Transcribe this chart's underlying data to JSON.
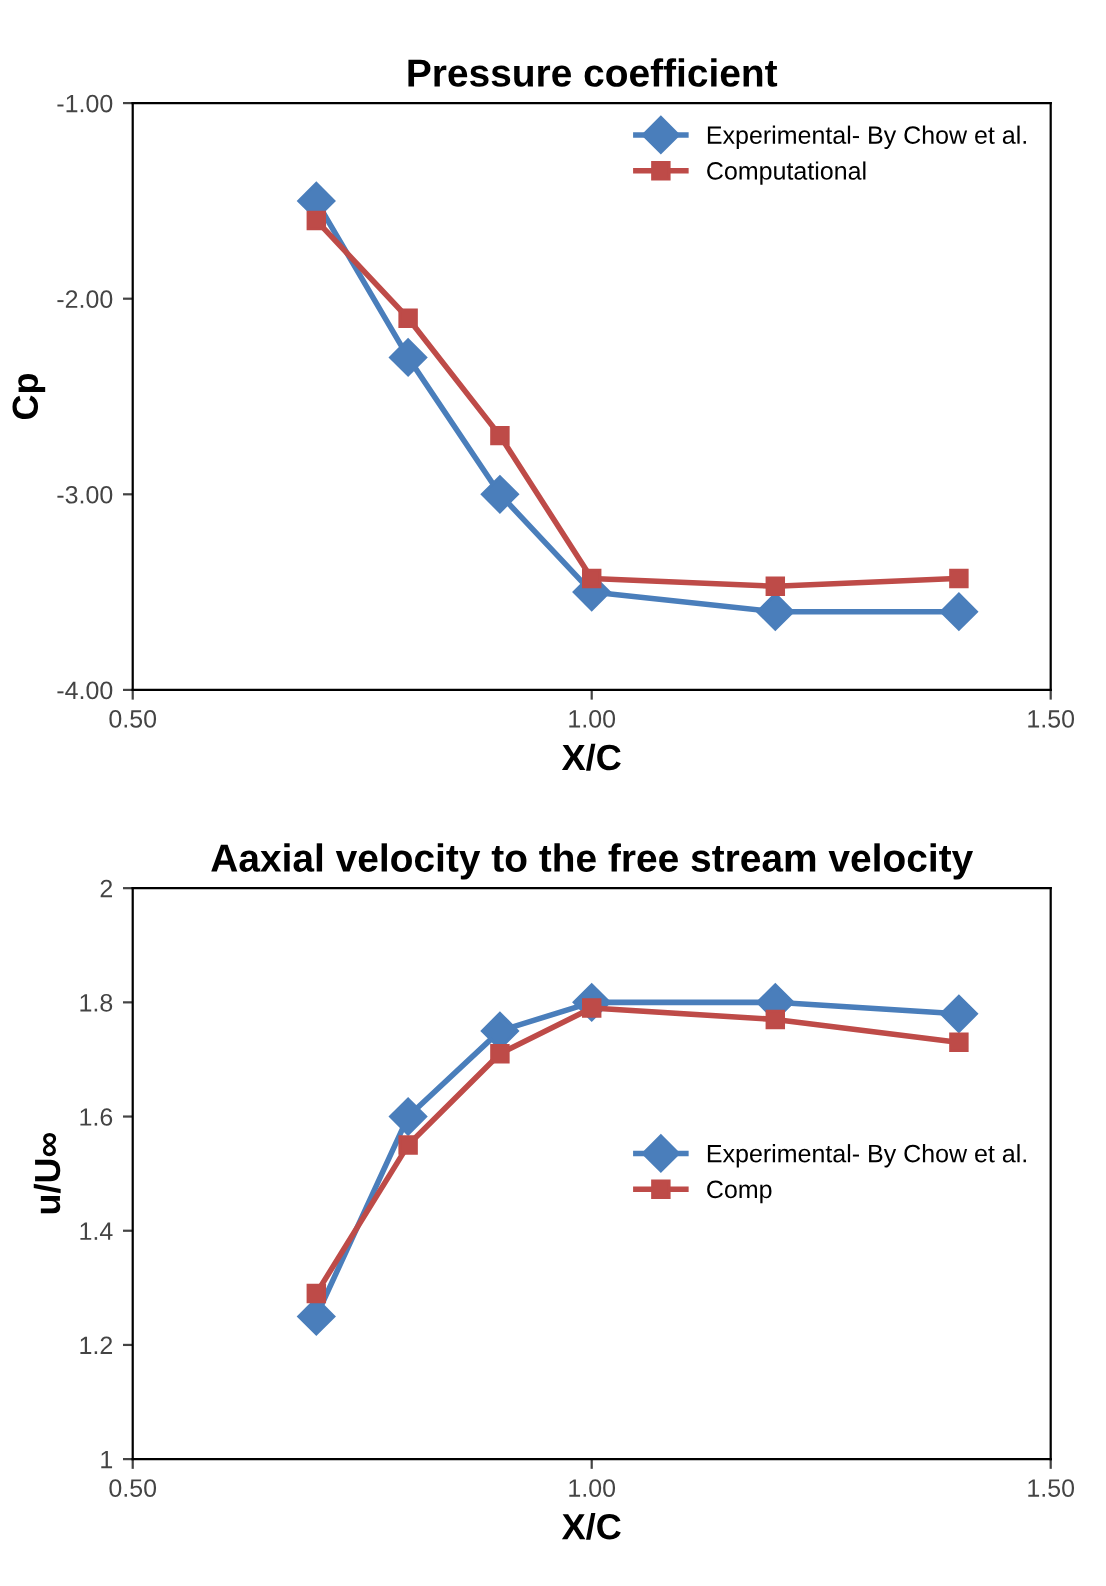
{
  "chart_data": [
    {
      "type": "line",
      "title": "Pressure coefficient",
      "xlabel": "X/C",
      "ylabel": "Cp",
      "xlim": [
        0.5,
        1.5
      ],
      "xticks": [
        {
          "value": 0.5,
          "label": "0.50"
        },
        {
          "value": 1.0,
          "label": "1.00"
        },
        {
          "value": 1.5,
          "label": "1.50"
        }
      ],
      "ylim": [
        -4,
        -1
      ],
      "yticks": [
        {
          "value": -4,
          "label": "-4.00"
        },
        {
          "value": -3,
          "label": "-3.00"
        },
        {
          "value": -2,
          "label": "-2.00"
        },
        {
          "value": -1,
          "label": "-1.00"
        }
      ],
      "grid": false,
      "legend": "top right",
      "series": [
        {
          "name": "Experimental- By Chow et al.",
          "color": "#4a7ebb",
          "marker": "diamond",
          "x": [
            0.7,
            0.8,
            0.9,
            1.0,
            1.2,
            1.4
          ],
          "values": [
            -1.5,
            -2.3,
            -3.0,
            -3.5,
            -3.6,
            -3.6
          ]
        },
        {
          "name": "Computational",
          "color": "#be4b48",
          "marker": "square",
          "x": [
            0.7,
            0.8,
            0.9,
            1.0,
            1.2,
            1.4
          ],
          "values": [
            -1.6,
            -2.1,
            -2.7,
            -3.43,
            -3.47,
            -3.43
          ]
        }
      ]
    },
    {
      "type": "line",
      "title": "Aaxial velocity to the free stream velocity",
      "xlabel": "X/C",
      "ylabel": "u/U∞",
      "xlim": [
        0.5,
        1.5
      ],
      "xticks": [
        {
          "value": 0.5,
          "label": "0.50"
        },
        {
          "value": 1.0,
          "label": "1.00"
        },
        {
          "value": 1.5,
          "label": "1.50"
        }
      ],
      "ylim": [
        1,
        2
      ],
      "yticks": [
        1,
        1.2,
        1.4,
        1.6,
        1.8,
        2
      ],
      "grid": false,
      "legend": "right",
      "series": [
        {
          "name": "Experimental- By Chow et al.",
          "color": "#4a7ebb",
          "marker": "diamond",
          "x": [
            0.7,
            0.8,
            0.9,
            1.0,
            1.2,
            1.4
          ],
          "values": [
            1.25,
            1.6,
            1.75,
            1.8,
            1.8,
            1.78
          ]
        },
        {
          "name": "Comp",
          "color": "#be4b48",
          "marker": "square",
          "x": [
            0.7,
            0.8,
            0.9,
            1.0,
            1.2,
            1.4
          ],
          "values": [
            1.29,
            1.55,
            1.71,
            1.79,
            1.77,
            1.73
          ]
        }
      ]
    }
  ]
}
